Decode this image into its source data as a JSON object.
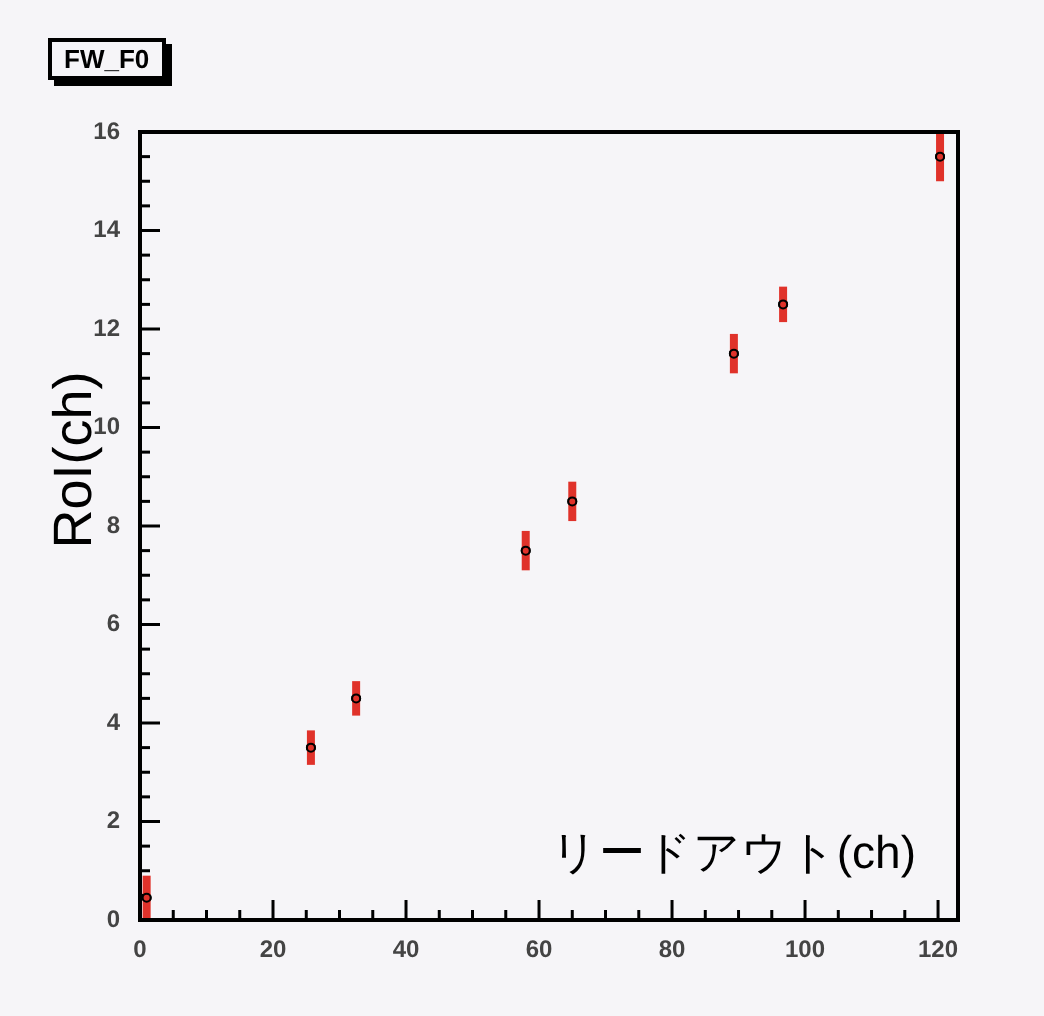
{
  "chart_data": {
    "type": "scatter",
    "title": "FW_F0",
    "xlabel": "リードアウト(ch)",
    "ylabel": "RoI(ch)",
    "x": [
      1,
      25.7,
      32.5,
      58,
      65,
      89.3,
      96.7,
      120.3
    ],
    "series": [
      {
        "color": "#e0322a",
        "values": [
          0.45,
          3.5,
          4.5,
          7.5,
          8.5,
          11.5,
          12.5,
          15.5
        ],
        "errors": [
          0.45,
          0.35,
          0.35,
          0.4,
          0.4,
          0.4,
          0.36,
          0.5
        ]
      }
    ],
    "xlim": [
      0,
      123
    ],
    "ylim": [
      0,
      16
    ],
    "xticks": [
      0,
      {
        "value": 5,
        "label": null
      },
      {
        "value": 10,
        "label": null
      },
      {
        "value": 15,
        "label": null
      },
      20,
      {
        "value": 25,
        "label": null
      },
      {
        "value": 30,
        "label": null
      },
      {
        "value": 35,
        "label": null
      },
      40,
      {
        "value": 45,
        "label": null
      },
      {
        "value": 50,
        "label": null
      },
      {
        "value": 55,
        "label": null
      },
      60,
      {
        "value": 65,
        "label": null
      },
      {
        "value": 70,
        "label": null
      },
      {
        "value": 75,
        "label": null
      },
      80,
      {
        "value": 85,
        "label": null
      },
      {
        "value": 90,
        "label": null
      },
      {
        "value": 95,
        "label": null
      },
      100,
      {
        "value": 105,
        "label": null
      },
      {
        "value": 110,
        "label": null
      },
      {
        "value": 115,
        "label": null
      },
      120
    ],
    "yticks": [
      0,
      {
        "value": 0.5,
        "label": null
      },
      {
        "value": 1,
        "label": null
      },
      {
        "value": 1.5,
        "label": null
      },
      2,
      {
        "value": 2.5,
        "label": null
      },
      {
        "value": 3,
        "label": null
      },
      {
        "value": 3.5,
        "label": null
      },
      4,
      {
        "value": 4.5,
        "label": null
      },
      {
        "value": 5,
        "label": null
      },
      {
        "value": 5.5,
        "label": null
      },
      6,
      {
        "value": 6.5,
        "label": null
      },
      {
        "value": 7,
        "label": null
      },
      {
        "value": 7.5,
        "label": null
      },
      8,
      {
        "value": 8.5,
        "label": null
      },
      {
        "value": 9,
        "label": null
      },
      {
        "value": 9.5,
        "label": null
      },
      10,
      {
        "value": 10.5,
        "label": null
      },
      {
        "value": 11,
        "label": null
      },
      {
        "value": 11.5,
        "label": null
      },
      12,
      {
        "value": 12.5,
        "label": null
      },
      {
        "value": 13,
        "label": null
      },
      {
        "value": 13.5,
        "label": null
      },
      14,
      {
        "value": 14.5,
        "label": null
      },
      {
        "value": 15,
        "label": null
      },
      {
        "value": 15.5,
        "label": null
      },
      16
    ],
    "grid": false,
    "legend": false
  }
}
